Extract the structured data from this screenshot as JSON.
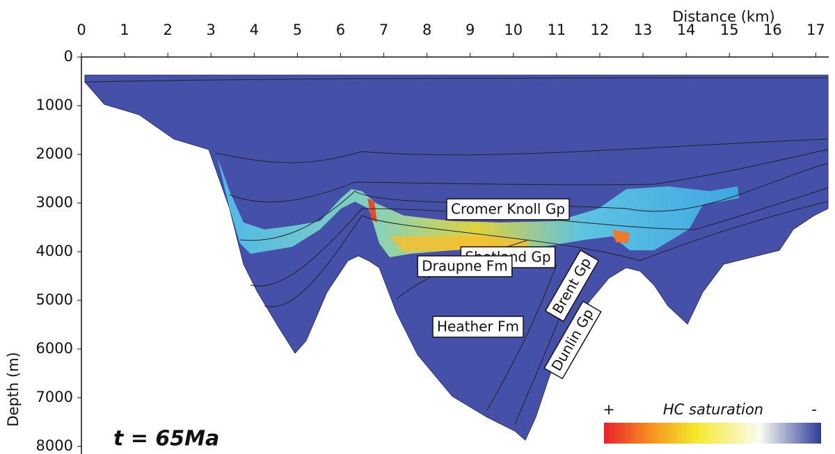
{
  "chart_data": {
    "type": "cross-section",
    "x_label": "Distance (km)",
    "y_label": "Depth (m)",
    "xlim": [
      0,
      17.3
    ],
    "xticks": [
      0,
      1,
      2,
      3,
      4,
      5,
      6,
      7,
      8,
      9,
      10,
      11,
      12,
      13,
      14,
      15,
      16,
      17
    ],
    "ylim": [
      0,
      8000
    ],
    "yticks": [
      0,
      1000,
      2000,
      3000,
      4000,
      5000,
      6000,
      7000,
      8000
    ],
    "annotations": [
      "Shetland Gp",
      "Cromer Knoll Gp",
      "Draupne Fm",
      "Heather Fm",
      "Brent Gp",
      "Dunlin Gp"
    ],
    "time_label": "t = 65Ma",
    "colorbar": {
      "title": "HC saturation",
      "max_label": "+",
      "min_label": "-"
    }
  }
}
